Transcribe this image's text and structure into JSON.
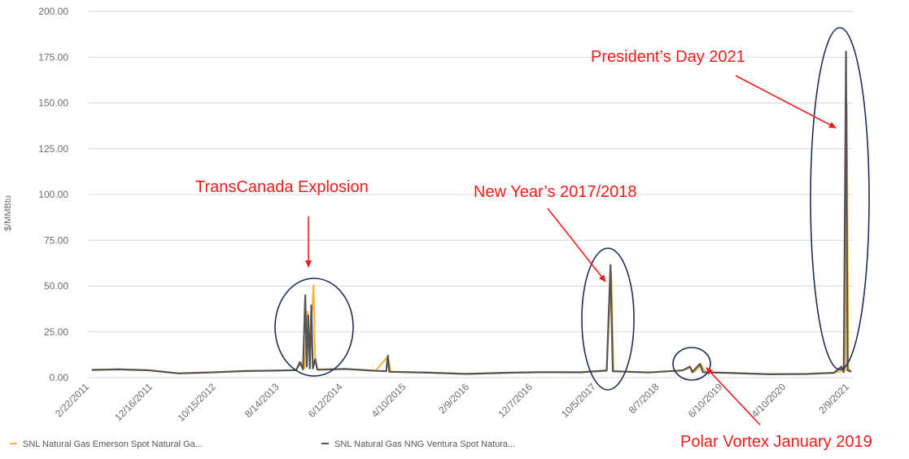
{
  "chart_data": {
    "type": "line",
    "ylabel": "$/MMBtu",
    "ylim": [
      0,
      200
    ],
    "yticks": [
      "0.00",
      "25.00",
      "50.00",
      "75.00",
      "100.00",
      "125.00",
      "150.00",
      "175.00",
      "200.00"
    ],
    "xticks": [
      "2/22/2011",
      "12/16/2011",
      "10/15/2012",
      "8/14/2013",
      "6/12/2014",
      "4/10/2015",
      "2/9/2016",
      "12/7/2016",
      "10/5/2017",
      "8/7/2018",
      "6/10/2019",
      "4/10/2020",
      "2/9/2021"
    ],
    "grid": "horizontal",
    "legend_position": "bottom-left",
    "series": [
      {
        "name": "SNL Natural Gas Emerson Spot Natural Ga...",
        "color": "#f5b335",
        "points": [
          [
            2011.15,
            4.3
          ],
          [
            2011.5,
            4.6
          ],
          [
            2011.9,
            4.1
          ],
          [
            2012.3,
            2.4
          ],
          [
            2012.7,
            2.9
          ],
          [
            2013.2,
            3.7
          ],
          [
            2013.6,
            3.9
          ],
          [
            2013.85,
            4.2
          ],
          [
            2013.92,
            8
          ],
          [
            2013.96,
            5
          ],
          [
            2014.0,
            36
          ],
          [
            2014.03,
            14
          ],
          [
            2014.05,
            29
          ],
          [
            2014.08,
            50.5
          ],
          [
            2014.1,
            12
          ],
          [
            2014.13,
            4.5
          ],
          [
            2014.5,
            4.8
          ],
          [
            2014.9,
            3.8
          ],
          [
            2015.06,
            11.5
          ],
          [
            2015.1,
            3.2
          ],
          [
            2015.6,
            2.8
          ],
          [
            2016.1,
            2.1
          ],
          [
            2016.6,
            2.7
          ],
          [
            2017.1,
            3.1
          ],
          [
            2017.6,
            3.0
          ],
          [
            2017.95,
            4
          ],
          [
            2018.01,
            58
          ],
          [
            2018.04,
            3.5
          ],
          [
            2018.5,
            2.9
          ],
          [
            2018.95,
            4.0
          ],
          [
            2019.05,
            5.5
          ],
          [
            2019.1,
            3
          ],
          [
            2019.2,
            7
          ],
          [
            2019.25,
            3
          ],
          [
            2019.6,
            2.6
          ],
          [
            2020.1,
            1.9
          ],
          [
            2020.6,
            2.1
          ],
          [
            2020.95,
            2.7
          ],
          [
            2021.1,
            4
          ],
          [
            2021.12,
            150
          ],
          [
            2021.14,
            5
          ],
          [
            2021.18,
            3.3
          ]
        ]
      },
      {
        "name": "SNL Natural Gas NNG Ventura Spot Natura...",
        "color": "#555555",
        "points": [
          [
            2011.15,
            4.2
          ],
          [
            2011.5,
            4.5
          ],
          [
            2011.9,
            4.0
          ],
          [
            2012.3,
            2.3
          ],
          [
            2012.7,
            2.8
          ],
          [
            2013.2,
            3.6
          ],
          [
            2013.6,
            3.8
          ],
          [
            2013.85,
            4.1
          ],
          [
            2013.9,
            8.5
          ],
          [
            2013.94,
            4.5
          ],
          [
            2013.97,
            45
          ],
          [
            2013.99,
            6
          ],
          [
            2014.01,
            34
          ],
          [
            2014.03,
            5
          ],
          [
            2014.05,
            39.5
          ],
          [
            2014.07,
            5
          ],
          [
            2014.1,
            10
          ],
          [
            2014.13,
            4.3
          ],
          [
            2014.5,
            4.7
          ],
          [
            2014.9,
            3.7
          ],
          [
            2015.04,
            3.5
          ],
          [
            2015.06,
            12
          ],
          [
            2015.08,
            3.2
          ],
          [
            2015.6,
            2.7
          ],
          [
            2016.1,
            2.0
          ],
          [
            2016.6,
            2.6
          ],
          [
            2017.1,
            3.0
          ],
          [
            2017.6,
            2.9
          ],
          [
            2017.95,
            3.8
          ],
          [
            2018.0,
            61.5
          ],
          [
            2018.03,
            3.5
          ],
          [
            2018.5,
            2.8
          ],
          [
            2018.95,
            3.9
          ],
          [
            2019.05,
            6
          ],
          [
            2019.08,
            3
          ],
          [
            2019.18,
            7.5
          ],
          [
            2019.22,
            3
          ],
          [
            2019.6,
            2.5
          ],
          [
            2020.1,
            1.8
          ],
          [
            2020.6,
            2.0
          ],
          [
            2020.95,
            2.6
          ],
          [
            2021.05,
            6
          ],
          [
            2021.08,
            3
          ],
          [
            2021.11,
            178
          ],
          [
            2021.13,
            4
          ],
          [
            2021.18,
            3.2
          ]
        ]
      }
    ],
    "annotations": [
      {
        "text": "TransCanada Explosion"
      },
      {
        "text": "New Year’s 2017/2018"
      },
      {
        "text": "President’s Day 2021"
      },
      {
        "text": "Polar Vortex January 2019"
      }
    ]
  }
}
